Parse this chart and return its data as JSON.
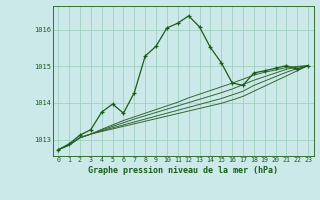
{
  "xlabel": "Graphe pression niveau de la mer (hPa)",
  "bg_color": "#cce9e9",
  "grid_color": "#99ccbb",
  "line_color_main": "#1a5c1a",
  "line_color_alt": "#336633",
  "yticks": [
    1013,
    1014,
    1015,
    1016
  ],
  "ylim": [
    1012.55,
    1016.65
  ],
  "xlim": [
    -0.5,
    23.5
  ],
  "xticks": [
    0,
    1,
    2,
    3,
    4,
    5,
    6,
    7,
    8,
    9,
    10,
    11,
    12,
    13,
    14,
    15,
    16,
    17,
    18,
    19,
    20,
    21,
    22,
    23
  ],
  "series1": [
    1012.72,
    1012.88,
    1013.12,
    1013.27,
    1013.75,
    1013.97,
    1013.72,
    1014.28,
    1015.28,
    1015.55,
    1016.05,
    1016.18,
    1016.38,
    1016.08,
    1015.52,
    1015.1,
    1014.55,
    1014.48,
    1014.82,
    1014.88,
    1014.95,
    1015.02,
    1014.92,
    1015.02
  ],
  "series2": [
    1012.72,
    1012.85,
    1013.05,
    1013.15,
    1013.22,
    1013.29,
    1013.36,
    1013.43,
    1013.5,
    1013.57,
    1013.64,
    1013.71,
    1013.78,
    1013.85,
    1013.92,
    1013.99,
    1014.08,
    1014.18,
    1014.32,
    1014.46,
    1014.6,
    1014.74,
    1014.88,
    1015.02
  ],
  "series3": [
    1012.72,
    1012.85,
    1013.05,
    1013.15,
    1013.24,
    1013.32,
    1013.4,
    1013.48,
    1013.56,
    1013.64,
    1013.72,
    1013.8,
    1013.88,
    1013.96,
    1014.04,
    1014.12,
    1014.22,
    1014.32,
    1014.48,
    1014.6,
    1014.72,
    1014.84,
    1014.94,
    1015.02
  ],
  "series4": [
    1012.72,
    1012.85,
    1013.05,
    1013.15,
    1013.26,
    1013.36,
    1013.46,
    1013.56,
    1013.65,
    1013.74,
    1013.83,
    1013.92,
    1014.01,
    1014.1,
    1014.19,
    1014.28,
    1014.38,
    1014.5,
    1014.62,
    1014.72,
    1014.82,
    1014.92,
    1014.98,
    1015.02
  ],
  "series5": [
    1012.72,
    1012.85,
    1013.05,
    1013.15,
    1013.28,
    1013.4,
    1013.52,
    1013.62,
    1013.72,
    1013.82,
    1013.92,
    1014.02,
    1014.14,
    1014.24,
    1014.34,
    1014.44,
    1014.54,
    1014.65,
    1014.76,
    1014.84,
    1014.9,
    1014.97,
    1015.0,
    1015.02
  ]
}
